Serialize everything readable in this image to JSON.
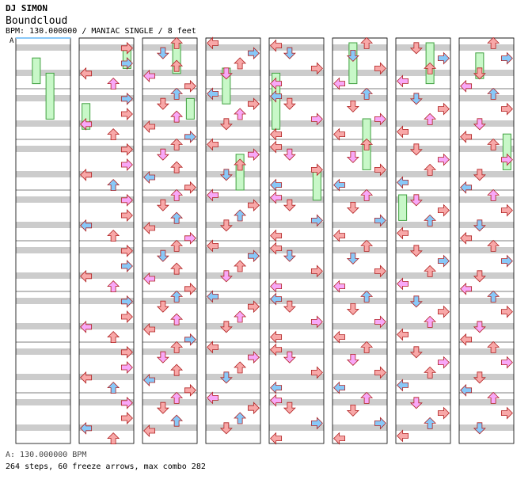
{
  "song": {
    "artist": "DJ SIMON",
    "title": "Boundcloud",
    "bpm_line": "BPM: 130.000000 / MANIAC SINGLE / 8 feet",
    "bpm_marker": "A",
    "bpm_legend": "A: 130.000000 BPM",
    "summary": "264 steps, 60 freeze arrows, max combo 282"
  },
  "colors": {
    "left": "#f8a8a8",
    "down": "#f8a8a8",
    "up": "#f8a8a8",
    "right": "#f8a8a8",
    "arrow_stroke": "#b02020",
    "quarter": "#f8a8a8",
    "eighth_blue": "#88c8f8",
    "sixteenth_green": "#80e080",
    "mine_pink": "#f8a8f8",
    "freeze_fill": "#c8f8c8",
    "freeze_stroke": "#40a040",
    "stripe": "#cccccc",
    "bpm_line": "#88c8f8"
  },
  "chart_data": {
    "type": "stepchart",
    "mode": "MANIAC SINGLE",
    "difficulty_feet": 8,
    "bpm": 130,
    "columns": 8,
    "measures_per_column": 8,
    "lanes": [
      "left",
      "down",
      "up",
      "right"
    ],
    "steps_total": 264,
    "freeze_arrows": 60,
    "max_combo": 282,
    "notes": [
      [],
      [
        [
          "r",
          0.2
        ],
        [
          "r",
          0.5
        ],
        [
          "l",
          0.7
        ],
        [
          "u",
          0.9
        ]
      ],
      [
        [
          "u",
          0.1
        ],
        [
          "d",
          0.3
        ],
        [
          "u",
          0.55
        ],
        [
          "l",
          0.75
        ],
        [
          "r",
          0.95
        ]
      ],
      [
        [
          "l",
          0.1
        ],
        [
          "r",
          0.3
        ],
        [
          "u",
          0.5
        ],
        [
          "d",
          0.7
        ]
      ],
      [
        [
          "l",
          0.15
        ],
        [
          "d",
          0.3
        ],
        [
          "r",
          0.6
        ],
        [
          "l",
          0.9
        ]
      ],
      [
        [
          "u",
          0.1
        ],
        [
          "d",
          0.35
        ],
        [
          "r",
          0.6
        ],
        [
          "l",
          0.9
        ]
      ],
      [
        [
          "d",
          0.2
        ],
        [
          "r",
          0.4
        ],
        [
          "u",
          0.6
        ],
        [
          "l",
          0.85
        ]
      ],
      [
        [
          "u",
          0.1
        ],
        [
          "r",
          0.4
        ],
        [
          "d",
          0.7
        ],
        [
          "l",
          0.95
        ]
      ]
    ],
    "freezes": [
      [
        [
          1,
          0.3,
          0.9
        ],
        [
          2,
          0.6,
          1.6
        ]
      ],
      [
        [
          3,
          0.1,
          0.6
        ],
        [
          0,
          1.2,
          1.8
        ]
      ],
      [
        [
          2,
          0.0,
          0.7
        ],
        [
          3,
          1.1,
          1.6
        ]
      ],
      [
        [
          1,
          0.5,
          1.3
        ],
        [
          2,
          2.2,
          3.0
        ]
      ],
      [
        [
          0,
          0.6,
          1.8
        ],
        [
          3,
          2.5,
          3.2
        ]
      ],
      [
        [
          1,
          0.0,
          0.9
        ],
        [
          2,
          1.5,
          2.6
        ]
      ],
      [
        [
          2,
          0.0,
          0.9
        ],
        [
          0,
          3.0,
          3.6
        ]
      ],
      [
        [
          1,
          0.2,
          0.8
        ],
        [
          3,
          1.8,
          2.6
        ]
      ]
    ]
  }
}
